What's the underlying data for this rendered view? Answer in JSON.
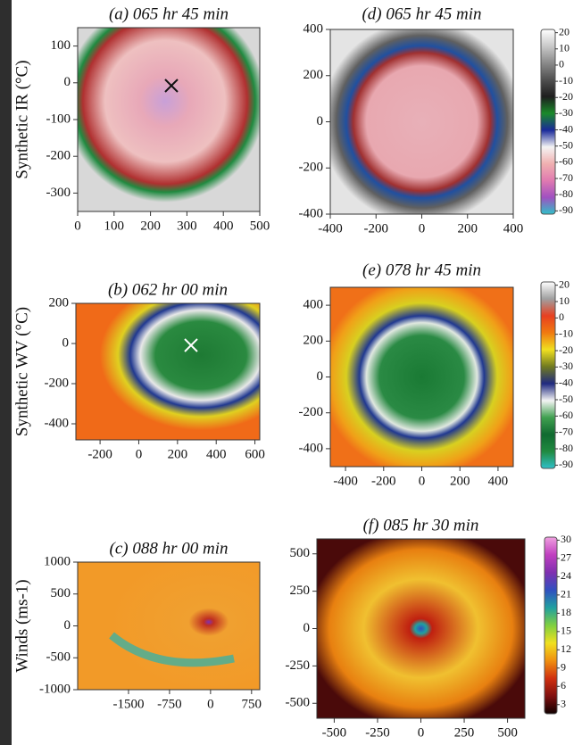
{
  "chart_data": [
    {
      "type": "image",
      "title": "(a) 065 hr 45 min",
      "ylabel": "Synthetic IR (°C)",
      "xlim": [
        0,
        500
      ],
      "xticks": [
        0,
        100,
        200,
        300,
        400,
        500
      ],
      "ylim": [
        -350,
        150
      ],
      "yticks": [
        100,
        0,
        -100,
        -200,
        -300
      ]
    },
    {
      "type": "image",
      "title": "(d) 065 hr 45 min",
      "xlim": [
        -400,
        400
      ],
      "xticks": [
        -400,
        -200,
        0,
        200,
        400
      ],
      "ylim": [
        -400,
        400
      ],
      "yticks": [
        400,
        200,
        0,
        -200,
        -400
      ],
      "colorbar": {
        "lim": [
          -92,
          22
        ],
        "ticks": [
          20,
          10,
          0,
          -10,
          -20,
          -30,
          -40,
          -50,
          -60,
          -70,
          -80,
          -90
        ],
        "colors": [
          "#ffffff",
          "#c8c8c8",
          "#8a8a8a",
          "#505050",
          "#1e1e1e",
          "#1a8a2a",
          "#1a2a9a",
          "#f4f4f4",
          "#f0b0b0",
          "#e07ab0",
          "#a050c0",
          "#30c0c8"
        ]
      }
    },
    {
      "type": "image",
      "title": "(b) 062 hr 00 min",
      "ylabel": "Synthetic WV (°C)",
      "xlim": [
        -325,
        625
      ],
      "xticks": [
        -200,
        0,
        200,
        400,
        600
      ],
      "ylim": [
        -480,
        200
      ],
      "yticks": [
        200,
        0,
        -200,
        -400
      ]
    },
    {
      "type": "image",
      "title": "(e) 078 hr 45 min",
      "xlim": [
        -480,
        480
      ],
      "xticks": [
        -400,
        -200,
        0,
        200,
        400
      ],
      "ylim": [
        -500,
        500
      ],
      "yticks": [
        400,
        200,
        0,
        -200,
        -400
      ],
      "colorbar": {
        "lim": [
          -92,
          22
        ],
        "ticks": [
          20,
          10,
          0,
          -10,
          -20,
          -30,
          -40,
          -50,
          -60,
          -70,
          -80,
          -90
        ],
        "colors": [
          "#ffffff",
          "#a0a0a0",
          "#e84020",
          "#f07a10",
          "#f0e020",
          "#707a20",
          "#202a80",
          "#f4f4f4",
          "#40a050",
          "#106a30",
          "#208a40",
          "#30c0c8"
        ]
      }
    },
    {
      "type": "image",
      "title": "(c) 088 hr 00 min",
      "ylabel": "Winds (ms-1)",
      "xlim": [
        -2430,
        900
      ],
      "xticks": [
        -1500,
        -750,
        0,
        750
      ],
      "ylim": [
        -1000,
        1000
      ],
      "yticks": [
        1000,
        500,
        0,
        -500,
        -1000
      ]
    },
    {
      "type": "image",
      "title": "(f) 085 hr 30 min",
      "xlim": [
        -600,
        600
      ],
      "xticks": [
        -500,
        -250,
        0,
        250,
        500
      ],
      "ylim": [
        -600,
        600
      ],
      "yticks": [
        500,
        250,
        0,
        -250,
        -500
      ],
      "colorbar": {
        "lim": [
          1.5,
          30.5
        ],
        "ticks": [
          30,
          27,
          24,
          21,
          18,
          15,
          12,
          9,
          6,
          3
        ],
        "colors": [
          "#f0a0e0",
          "#c040c0",
          "#8030b0",
          "#3050c0",
          "#20a0a0",
          "#80d040",
          "#f0e020",
          "#f09010",
          "#d03010",
          "#801010",
          "#100000"
        ]
      }
    }
  ]
}
